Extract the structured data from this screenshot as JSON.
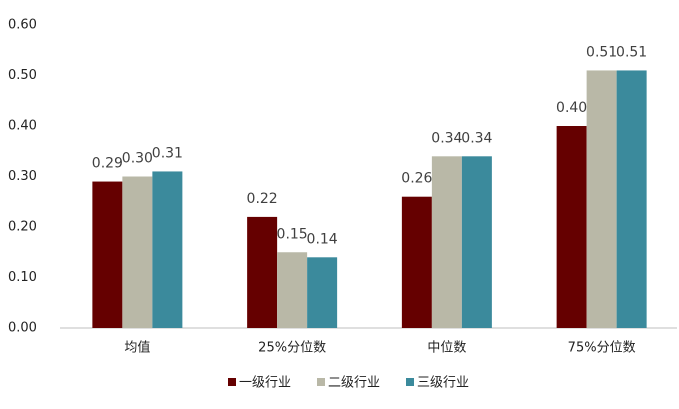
{
  "chart_data": {
    "type": "bar",
    "categories": [
      "均值",
      "25%分位数",
      "中位数",
      "75%分位数"
    ],
    "series": [
      {
        "name": "一级行业",
        "color": "#650000",
        "values": [
          0.29,
          0.22,
          0.26,
          0.4
        ],
        "value_labels": [
          "0.29",
          "0.22",
          "0.26",
          "0.40"
        ]
      },
      {
        "name": "二级行业",
        "color": "#b9b8a7",
        "values": [
          0.3,
          0.15,
          0.34,
          0.51
        ],
        "value_labels": [
          "0.30",
          "0.15",
          "0.34",
          "0.51"
        ]
      },
      {
        "name": "三级行业",
        "color": "#3b8a9c",
        "values": [
          0.31,
          0.14,
          0.34,
          0.51
        ],
        "value_labels": [
          "0.31",
          "0.14",
          "0.34",
          "0.51"
        ]
      }
    ],
    "ylim": [
      0,
      0.6
    ],
    "yticks": [
      {
        "value": 0,
        "label": "0.00"
      },
      {
        "value": 0.1,
        "label": "0.10"
      },
      {
        "value": 0.2,
        "label": "0.20"
      },
      {
        "value": 0.3,
        "label": "0.30"
      },
      {
        "value": 0.4,
        "label": "0.40"
      },
      {
        "value": 0.5,
        "label": "0.50"
      },
      {
        "value": 0.6,
        "label": "0.60"
      }
    ],
    "grid": false,
    "legend": "bottom"
  }
}
